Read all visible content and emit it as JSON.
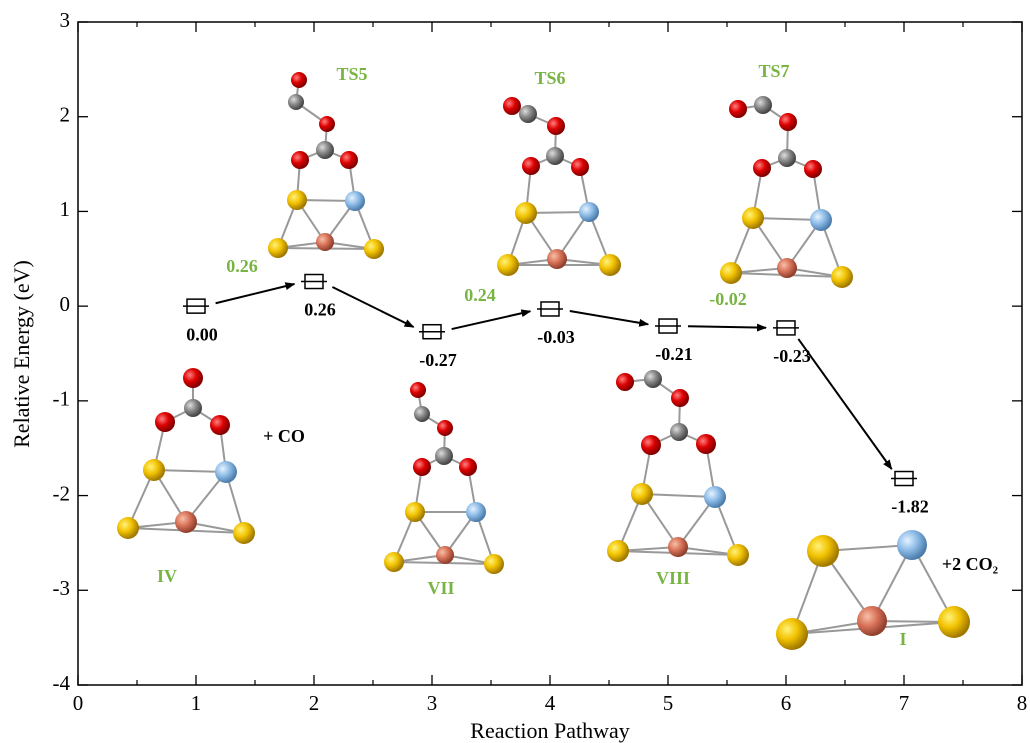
{
  "chart_data": {
    "type": "scatter",
    "x_label": "Reaction Pathway",
    "y_label": "Relative Energy (eV)",
    "x": [
      1,
      2,
      3,
      4,
      5,
      6,
      7
    ],
    "values": [
      0,
      0.26,
      -0.27,
      -0.03,
      -0.21,
      -0.23,
      -1.82
    ],
    "value_labels": [
      "0.00",
      "0.26",
      "-0.27",
      "-0.03",
      "-0.21",
      "-0.23",
      "-1.82"
    ],
    "xlim": [
      0,
      8
    ],
    "xticks": [
      0,
      1,
      2,
      3,
      4,
      5,
      6,
      7,
      8
    ],
    "xminor_ticks": [
      0.5,
      1.5,
      2.5,
      3.5,
      4.5,
      5.5,
      6.5,
      7.5
    ],
    "ylim": [
      -4,
      3
    ],
    "yticks": [
      -4,
      -3,
      -2,
      -1,
      0,
      1,
      2,
      3
    ],
    "color": "#000000",
    "barrier_labels": [
      "0.26",
      "0.24",
      "-0.02"
    ],
    "structure_labels": [
      "IV",
      "TS5",
      "VII",
      "TS6",
      "VIII",
      "TS7",
      "I"
    ],
    "reactant_labels": [
      "+ CO",
      "+2 CO₂"
    ]
  }
}
